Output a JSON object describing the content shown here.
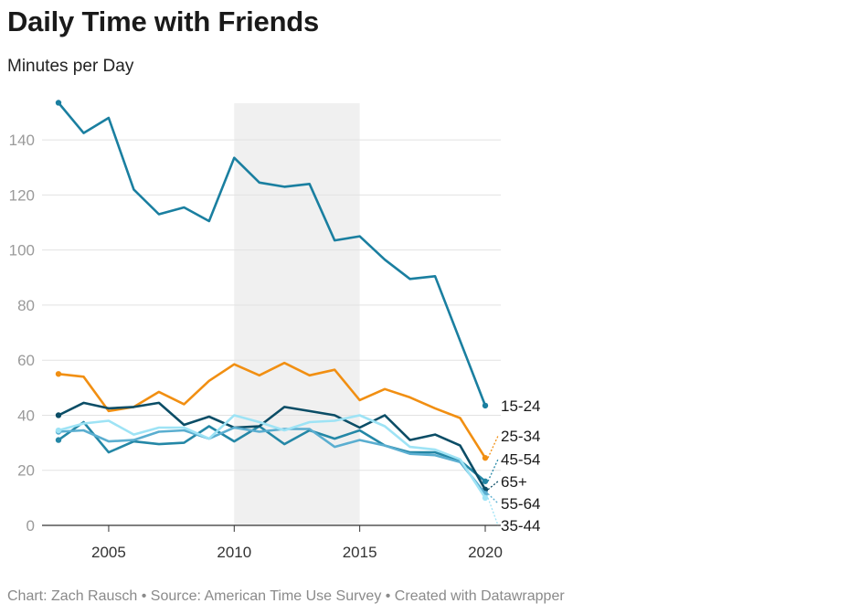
{
  "title": "Daily Time with Friends",
  "subtitle": "Minutes per Day",
  "footer": "Chart: Zach Rausch • Source: American Time Use Survey • Created with Datawrapper",
  "chart_data": {
    "type": "line",
    "title": "Daily Time with Friends",
    "ylabel": "Minutes per Day",
    "xlim": [
      2003,
      2020
    ],
    "ylim": [
      0,
      150
    ],
    "yticks": [
      0,
      20,
      40,
      60,
      80,
      100,
      120,
      140
    ],
    "xticks": [
      2005,
      2010,
      2015,
      2020
    ],
    "highlight_band": {
      "x_start": 2010,
      "x_end": 2015,
      "color": "#f0f0f0"
    },
    "x": [
      2003,
      2004,
      2005,
      2006,
      2007,
      2008,
      2009,
      2010,
      2011,
      2012,
      2013,
      2014,
      2015,
      2016,
      2017,
      2018,
      2019,
      2020
    ],
    "series": [
      {
        "name": "15-24",
        "color": "#1a7fa0",
        "values": [
          153.5,
          142.5,
          148,
          122,
          113,
          115.5,
          110.5,
          133.5,
          124.5,
          123,
          124,
          103.5,
          105,
          96.5,
          89.5,
          90.5,
          null,
          43.5
        ]
      },
      {
        "name": "25-34",
        "color": "#f18f12",
        "values": [
          55,
          54,
          41.5,
          43,
          48.5,
          44,
          52.5,
          58.5,
          54.5,
          59,
          54.5,
          56.5,
          45.5,
          49.5,
          46.5,
          42.5,
          39,
          24.5
        ]
      },
      {
        "name": "45-54",
        "color": "#2487a6",
        "values": [
          31,
          37.5,
          26.5,
          30.5,
          29.5,
          30,
          36,
          30.5,
          36,
          29.5,
          34.5,
          31.5,
          34.5,
          29,
          26.5,
          26.5,
          23.5,
          16
        ]
      },
      {
        "name": "65+",
        "color": "#0b4d66",
        "values": [
          40,
          44.5,
          42.5,
          43,
          44.5,
          36.5,
          39.5,
          35.5,
          36,
          43,
          41.5,
          40,
          35.5,
          40,
          31,
          33,
          29,
          13
        ]
      },
      {
        "name": "55-64",
        "color": "#5aaed0",
        "values": [
          34,
          34.5,
          30.5,
          31,
          34,
          34.5,
          31.5,
          35.5,
          34,
          35,
          35,
          28.5,
          31,
          29,
          26,
          25.5,
          23,
          11.5
        ]
      },
      {
        "name": "35-44",
        "color": "#9ee3f5",
        "values": [
          34.5,
          37,
          38,
          33,
          35.5,
          35.5,
          31.5,
          40,
          37.5,
          34.5,
          37.5,
          38,
          40,
          36,
          28.5,
          27.5,
          24,
          10
        ]
      }
    ]
  }
}
